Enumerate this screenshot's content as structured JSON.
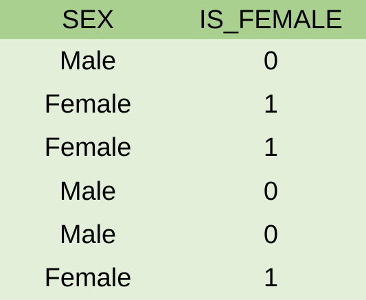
{
  "table": {
    "headers": [
      "SEX",
      "IS_FEMALE"
    ],
    "rows": [
      [
        "Male",
        "0"
      ],
      [
        "Female",
        "1"
      ],
      [
        "Female",
        "1"
      ],
      [
        "Male",
        "0"
      ],
      [
        "Male",
        "0"
      ],
      [
        "Female",
        "1"
      ]
    ]
  },
  "colors": {
    "header_background": "#a9d08e",
    "body_background": "#e3efd9",
    "text": "#000000"
  }
}
